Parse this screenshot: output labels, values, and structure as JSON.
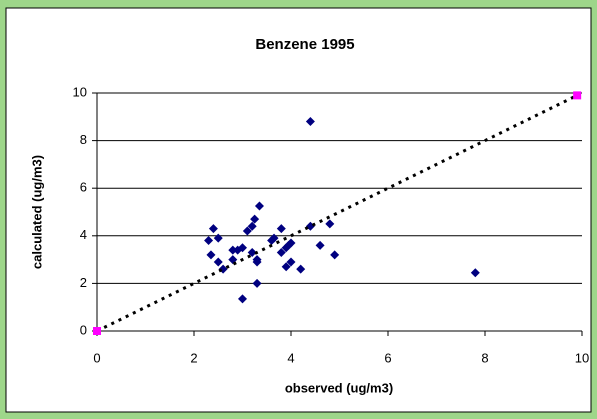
{
  "chart_data": {
    "type": "scatter",
    "title": "Benzene 1995",
    "x_label": "observed (ug/m3)",
    "y_label": "calculated (ug/m3)",
    "xlim": [
      0,
      10
    ],
    "ylim": [
      0,
      10
    ],
    "xticks": [
      0,
      2,
      4,
      6,
      8,
      10
    ],
    "yticks": [
      0,
      2,
      4,
      6,
      8,
      10
    ],
    "grid": "y",
    "series": [
      {
        "color": "#000080",
        "marker": "diamond",
        "x": [
          2.3,
          2.4,
          2.5,
          2.35,
          2.5,
          2.6,
          2.8,
          2.8,
          2.9,
          3.0,
          3.1,
          3.2,
          3.25,
          3.35,
          3.2,
          3.3,
          3.3,
          3.3,
          3.0,
          3.6,
          3.65,
          3.8,
          3.8,
          3.9,
          3.95,
          3.9,
          4.0,
          4.0,
          4.2,
          4.4,
          4.4,
          4.6,
          4.8,
          4.9,
          7.8
        ],
        "values": [
          3.8,
          4.3,
          3.9,
          3.2,
          2.9,
          2.6,
          3.4,
          3.0,
          3.4,
          3.5,
          4.2,
          4.4,
          4.7,
          5.25,
          3.3,
          3.0,
          2.9,
          2.0,
          1.35,
          3.8,
          3.9,
          4.3,
          3.3,
          3.5,
          3.6,
          2.7,
          3.7,
          2.9,
          2.6,
          4.4,
          8.8,
          3.6,
          4.5,
          3.2,
          2.45
        ]
      },
      {
        "color": "#ff00ff",
        "marker": "square",
        "line_color": "#000000",
        "line_style": "dotted",
        "x": [
          0,
          9.9
        ],
        "values": [
          0,
          9.9
        ]
      }
    ]
  }
}
